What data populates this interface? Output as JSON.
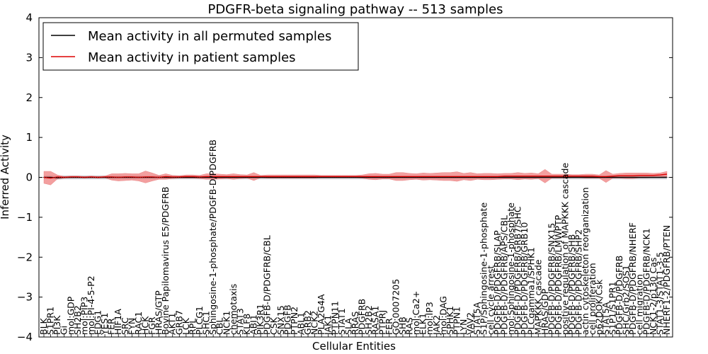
{
  "chart_data": {
    "type": "line",
    "title": "PDGFR-beta signaling pathway -- 513 samples",
    "xlabel": "Cellular Entities",
    "ylabel": "Inferred Activity",
    "ylim": [
      -4,
      4
    ],
    "yticks": [
      "-4",
      "-3",
      "-2",
      "-1",
      "0",
      "1",
      "2",
      "3",
      "4"
    ],
    "legend": {
      "placement": "top-left",
      "entries": [
        {
          "label": "Mean activity in all permuted samples",
          "color": "#000000"
        },
        {
          "label": "Mean activity in patient samples",
          "color": "#dd0000"
        }
      ]
    },
    "colors": {
      "permuted": "#000000",
      "patient": "#dd0000",
      "patient_band": "#f08080",
      "permuted_band": "#c8c8d0"
    },
    "categories": [
      "BLK",
      "S1PR1",
      "PI3K",
      "Gi",
      "mol:GDP",
      "SH2B2",
      "mol:PIP3",
      "mol:PI-4-5-P2",
      "EDG1",
      "YES1",
      "FER",
      "HIF1A",
      "SRC",
      "FYN",
      "RAC1",
      "HCK",
      "FGR",
      "HRAS/GTP",
      "Bovine Papilomavirus E5/PDGFRB",
      "AKT1",
      "GRB7",
      "LCK",
      "RPL",
      "PLCG1",
      "SHC1",
      "Sphingosine-1-phosphate/PDGFB-D/PDGFRB",
      "CBL",
      "NCK1",
      "chemotaxis",
      "STAT3",
      "KLF8",
      "ABI1",
      "PIK3R1",
      "PDGFB-D/PDGFRB/CBL",
      "CSK",
      "SNX15",
      "PDGFB",
      "PTPN2",
      "ABL1",
      "GRB2",
      "NCK2",
      "PLA2G4A",
      "JAK1",
      "PTPN11",
      "STAT1",
      "SLA",
      "RRAS",
      "PDGFRB",
      "SH2B2",
      "RASA1",
      "PTPRJ",
      "FER",
      "GO:0007205",
      "SHB",
      "RAS",
      "mol:Ca2+",
      "ELK1",
      "mol:IP3",
      "JAK2",
      "mol:DAG",
      "SPHK1",
      "PTPN1",
      "LYN",
      "VAV2",
      "STAT5A",
      "S1P/Sphingosine-1-phosphate",
      "cell cycle arrest",
      "PDGFB-D/PDGFRB/SLAP",
      "PDGFB-D/PDGFRB/APS/CBL",
      "mol:Sphingosine-1-phosphate",
      "PDGFB-D/PDGFRB/GRB7/SHC",
      "PDGFB-D/PDGFRB/GRB10",
      "PLCgamma1/SPHK1",
      "MAPKKK cascade",
      "HRAS/GDP",
      "PDGFB-D/PDGFRB/SNX15",
      "PDGFB-D/PDGFRB/LMWPTP",
      "positive regulation of MAPKKK cascade",
      "PDGFB-D/PDGFRB/SHB",
      "PDGFB-D/PDGFRB/SHP2",
      "actin cytoskeleton reorganization",
      "cell proliferation",
      "p62DOK/Csk",
      "STAT5A",
      "S1P1/S1PR1",
      "PDGFB-D/PDGFRB",
      "SHC/Grb2/SOS1",
      "PDGFB-D/PDGFRB/NHERF",
      "cell migration",
      "PDGFB-D/PDGFRB/NCK1",
      "NCK1-2/p130 Cas",
      "STAT1-3/STAT1-3-5",
      "NHERF1-2/PDGFRB/PTEN"
    ],
    "series": [
      {
        "name": "Mean activity in all permuted samples",
        "values": [
          0.0,
          0.0,
          -0.01,
          0.0,
          0.0,
          0.0,
          0.0,
          0.0,
          0.0,
          0.0,
          0.0,
          0.0,
          0.0,
          0.0,
          0.0,
          0.0,
          0.0,
          0.0,
          0.0,
          0.0,
          0.0,
          0.0,
          0.0,
          0.0,
          0.0,
          0.0,
          0.0,
          0.0,
          0.0,
          0.0,
          0.0,
          0.0,
          0.0,
          0.0,
          0.0,
          0.0,
          0.0,
          0.0,
          0.0,
          0.0,
          0.0,
          0.0,
          0.0,
          0.0,
          0.0,
          0.0,
          0.0,
          0.0,
          0.0,
          0.0,
          0.0,
          0.0,
          0.0,
          0.0,
          0.0,
          0.0,
          0.0,
          0.0,
          0.0,
          0.0,
          0.0,
          0.0,
          0.0,
          0.0,
          0.0,
          0.0,
          0.0,
          0.0,
          0.0,
          0.0,
          0.0,
          0.0,
          0.0,
          0.0,
          0.0,
          0.0,
          0.0,
          0.0,
          0.0,
          0.0,
          0.0,
          0.0,
          0.0,
          0.0,
          0.0,
          0.0,
          0.0,
          0.0,
          0.0,
          0.0,
          0.0,
          0.0,
          0.0
        ]
      },
      {
        "name": "Mean activity in patient samples",
        "values": [
          0.0,
          -0.02,
          0.01,
          0.0,
          0.01,
          0.01,
          0.0,
          0.01,
          0.0,
          0.01,
          0.01,
          0.0,
          0.01,
          0.01,
          0.0,
          0.01,
          0.01,
          0.0,
          0.02,
          0.01,
          0.01,
          0.02,
          0.02,
          0.01,
          0.02,
          0.02,
          0.02,
          0.02,
          0.02,
          0.02,
          0.02,
          0.02,
          0.02,
          0.02,
          0.02,
          0.02,
          0.02,
          0.02,
          0.02,
          0.02,
          0.02,
          0.02,
          0.02,
          0.02,
          0.02,
          0.02,
          0.02,
          0.02,
          0.02,
          0.02,
          0.02,
          0.02,
          0.02,
          0.02,
          0.02,
          0.02,
          0.02,
          0.02,
          0.02,
          0.02,
          0.02,
          0.02,
          0.02,
          0.02,
          0.02,
          0.02,
          0.02,
          0.02,
          0.03,
          0.03,
          0.03,
          0.03,
          0.03,
          0.03,
          0.03,
          0.03,
          0.03,
          0.03,
          0.03,
          0.03,
          0.03,
          0.03,
          0.02,
          0.02,
          0.03,
          0.04,
          0.04,
          0.04,
          0.05,
          0.05,
          0.05,
          0.06,
          0.08
        ]
      }
    ],
    "patient_band": [
      0.15,
      0.17,
      0.05,
      0.02,
      0.02,
      0.02,
      0.02,
      0.02,
      0.02,
      0.02,
      0.08,
      0.09,
      0.09,
      0.08,
      0.09,
      0.15,
      0.1,
      0.05,
      0.07,
      0.04,
      0.03,
      0.04,
      0.04,
      0.04,
      0.07,
      0.07,
      0.06,
      0.05,
      0.07,
      0.05,
      0.04,
      0.1,
      0.03,
      0.04,
      0.04,
      0.04,
      0.04,
      0.04,
      0.04,
      0.04,
      0.04,
      0.03,
      0.03,
      0.03,
      0.03,
      0.03,
      0.03,
      0.04,
      0.07,
      0.08,
      0.06,
      0.06,
      0.1,
      0.1,
      0.08,
      0.07,
      0.09,
      0.08,
      0.09,
      0.1,
      0.1,
      0.12,
      0.08,
      0.1,
      0.07,
      0.08,
      0.08,
      0.07,
      0.07,
      0.07,
      0.09,
      0.07,
      0.08,
      0.06,
      0.17,
      0.05,
      0.05,
      0.05,
      0.04,
      0.04,
      0.05,
      0.05,
      0.04,
      0.15,
      0.05,
      0.06,
      0.07,
      0.07,
      0.06,
      0.06,
      0.05,
      0.05,
      0.07
    ],
    "permuted_band": [
      0.05,
      0.05,
      0.05,
      0.05,
      0.05,
      0.05,
      0.05,
      0.05,
      0.05,
      0.05,
      0.05,
      0.05,
      0.05,
      0.05,
      0.05,
      0.05,
      0.05,
      0.05,
      0.05,
      0.05,
      0.05,
      0.05,
      0.05,
      0.05,
      0.05,
      0.05,
      0.05,
      0.05,
      0.05,
      0.05,
      0.05,
      0.05,
      0.05,
      0.05,
      0.05,
      0.05,
      0.05,
      0.05,
      0.05,
      0.05,
      0.05,
      0.05,
      0.05,
      0.05,
      0.05,
      0.05,
      0.05,
      0.05,
      0.05,
      0.05,
      0.05,
      0.05,
      0.05,
      0.05,
      0.05,
      0.05,
      0.05,
      0.05,
      0.05,
      0.05,
      0.05,
      0.05,
      0.05,
      0.05,
      0.05,
      0.05,
      0.05,
      0.05,
      0.05,
      0.05,
      0.05,
      0.05,
      0.05,
      0.05,
      0.05,
      0.05,
      0.05,
      0.05,
      0.05,
      0.05,
      0.05,
      0.05,
      0.05,
      0.05,
      0.05,
      0.05,
      0.05,
      0.05,
      0.05,
      0.05,
      0.05,
      0.05,
      0.05
    ]
  }
}
